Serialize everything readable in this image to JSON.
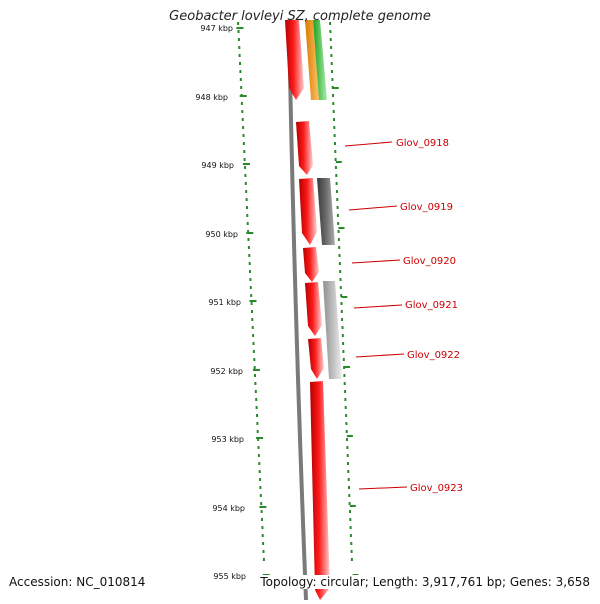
{
  "title": "Geobacter lovleyi SZ, complete genome",
  "accession": "Accession: NC_010814",
  "summary": "Topology: circular; Length: 3,917,761 bp; Genes: 3,658",
  "ruler_labels": [
    "947 kbp",
    "948 kbp",
    "949 kbp",
    "950 kbp",
    "951 kbp",
    "952 kbp",
    "953 kbp",
    "954 kbp",
    "955 kbp"
  ],
  "gene_labels": [
    "Glov_0918",
    "Glov_0919",
    "Glov_0920",
    "Glov_0921",
    "Glov_0922",
    "Glov_0923"
  ],
  "colors": {
    "ruler": "#2a8a2a",
    "gene": "#ff1a1a",
    "label": "#cc0000",
    "backbone": "#808080",
    "orange": "#ff9900",
    "green": "#33cc33"
  }
}
